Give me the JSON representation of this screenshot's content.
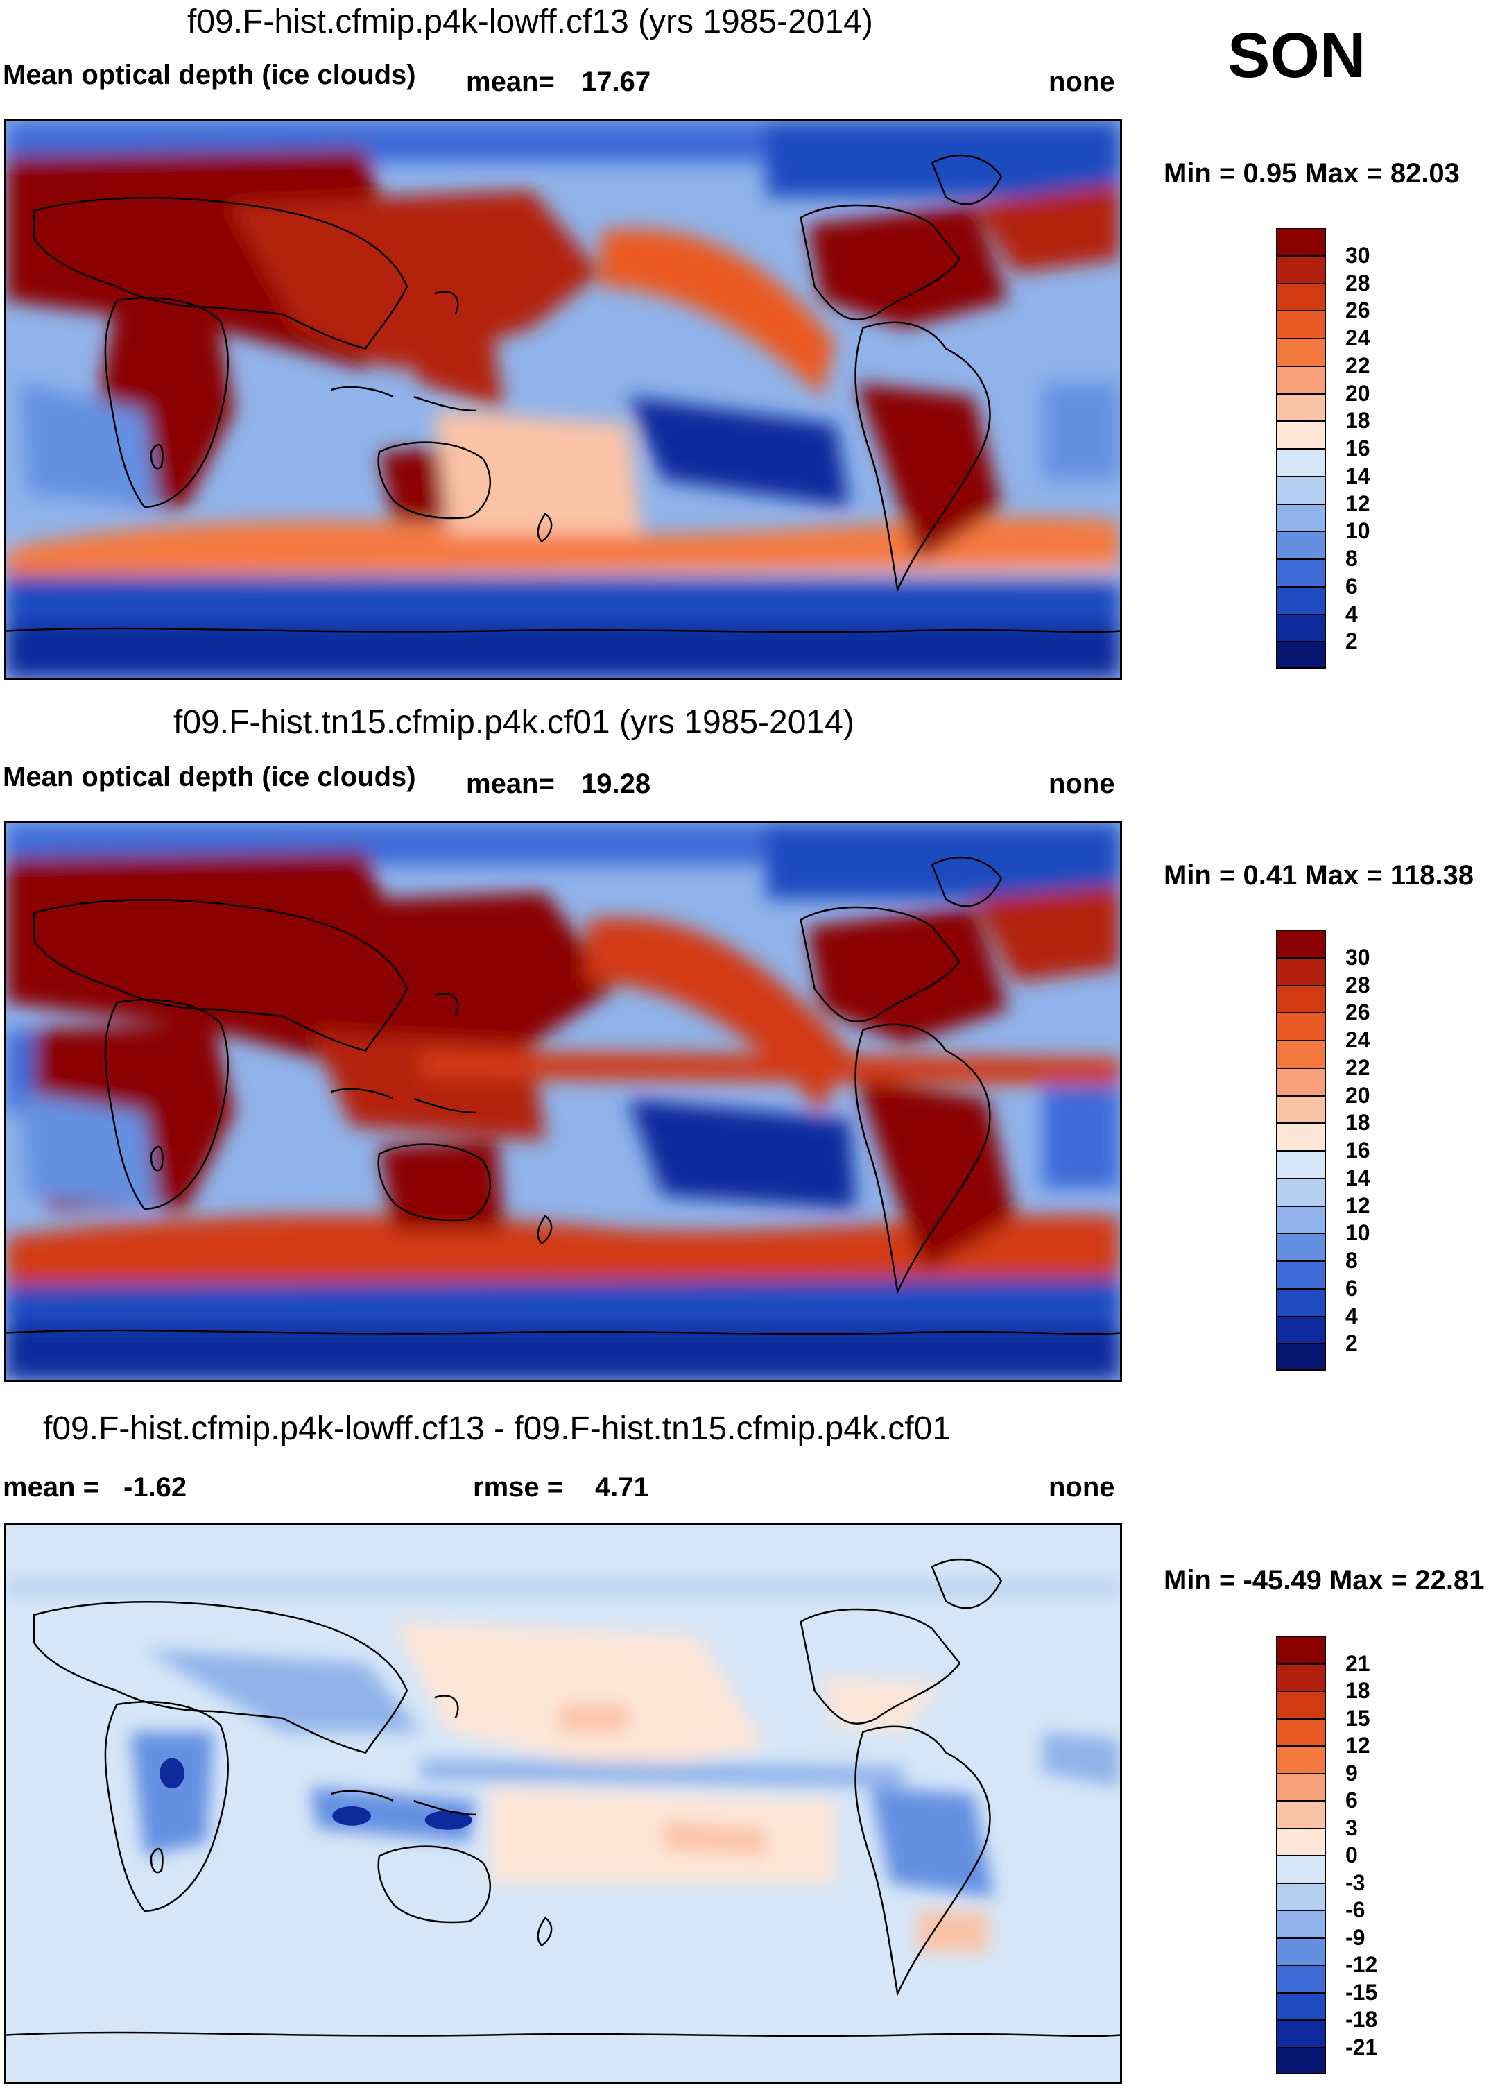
{
  "season": "SON",
  "panels": [
    {
      "title": "f09.F-hist.cfmip.p4k-lowff.cf13 (yrs 1985-2014)",
      "left_label": "Mean optical depth (ice clouds)",
      "mean_label": "mean=",
      "mean_value": "17.67",
      "units": "none",
      "min_max": "Min =   0.95 Max =  82.03"
    },
    {
      "title": "f09.F-hist.tn15.cfmip.p4k.cf01 (yrs 1985-2014)",
      "left_label": "Mean optical depth (ice clouds)",
      "mean_label": "mean=",
      "mean_value": "19.28",
      "units": "none",
      "min_max": "Min =   0.41 Max = 118.38"
    },
    {
      "title": "f09.F-hist.cfmip.p4k-lowff.cf13 - f09.F-hist.tn15.cfmip.p4k.cf01",
      "mean_label": "mean =",
      "mean_value": "-1.62",
      "rmse_label": "rmse =",
      "rmse_value": "4.71",
      "units": "none",
      "min_max": "Min = -45.49 Max =  22.81"
    }
  ],
  "colorbars": {
    "abs": {
      "labels": [
        "30",
        "28",
        "26",
        "24",
        "22",
        "20",
        "18",
        "16",
        "14",
        "12",
        "10",
        "8",
        "6",
        "4",
        "2"
      ],
      "colors": [
        "#8b0000",
        "#b3200d",
        "#d23b12",
        "#ea5a24",
        "#f4793f",
        "#f8a07a",
        "#fbc3a6",
        "#fde6d8",
        "#d6e6f7",
        "#b4cff0",
        "#8fb3ea",
        "#6590e2",
        "#3d6cd8",
        "#1f4cc0",
        "#0e2a9c",
        "#061670"
      ]
    },
    "diff": {
      "labels": [
        "21",
        "18",
        "15",
        "12",
        "9",
        "6",
        "3",
        "0",
        "-3",
        "-6",
        "-9",
        "-12",
        "-15",
        "-18",
        "-21"
      ],
      "colors": [
        "#8b0000",
        "#b3200d",
        "#d23b12",
        "#ea5a24",
        "#f4793f",
        "#f8a07a",
        "#fbc3a6",
        "#fde6d8",
        "#d6e6f7",
        "#b4cff0",
        "#8fb3ea",
        "#6590e2",
        "#3d6cd8",
        "#1f4cc0",
        "#0e2a9c",
        "#061670"
      ]
    }
  }
}
